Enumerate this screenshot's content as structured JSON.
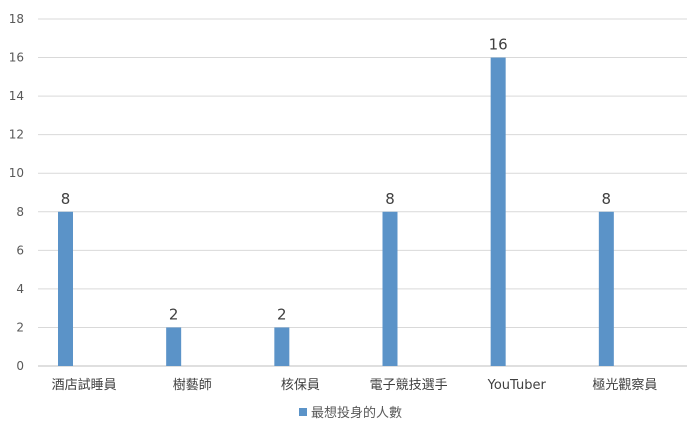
{
  "chart_data": {
    "type": "bar",
    "categories": [
      "酒店試睡員",
      "樹藝師",
      "核保員",
      "電子競技選手",
      "YouTuber",
      "極光觀察員"
    ],
    "series": [
      {
        "name": "最想投身的人數",
        "values": [
          8,
          2,
          2,
          8,
          16,
          8
        ],
        "color": "#5B93C8"
      }
    ],
    "data_labels": [
      "8",
      "2",
      "2",
      "8",
      "16",
      "8"
    ],
    "title": "",
    "xlabel": "",
    "ylabel": "",
    "ylim": [
      0,
      18
    ],
    "yticks": [
      0,
      2,
      4,
      6,
      8,
      10,
      12,
      14,
      16,
      18
    ],
    "grid": true,
    "legend_position": "bottom"
  },
  "colors": {
    "gridline": "#D9D9D9",
    "axis": "#BFBFBF"
  }
}
